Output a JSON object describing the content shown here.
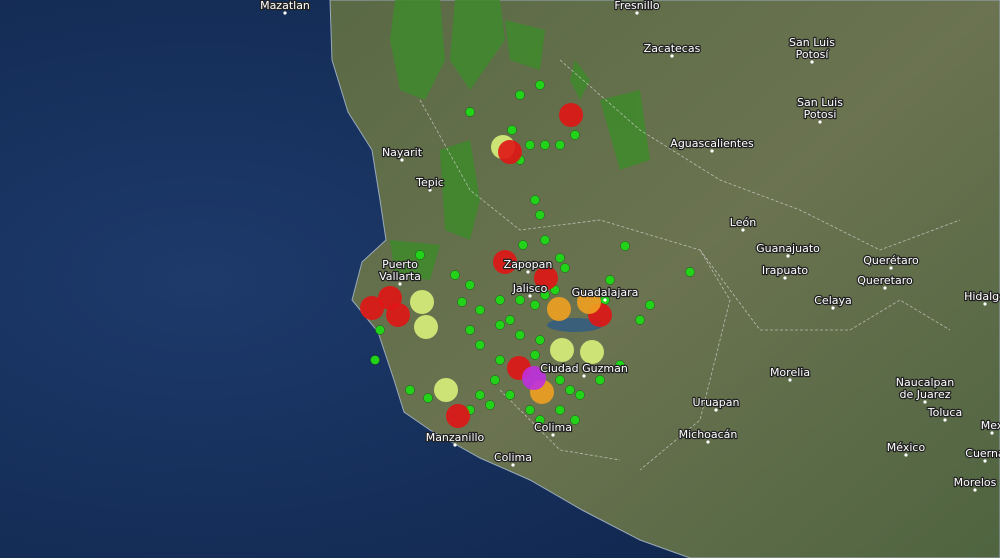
{
  "places": [
    {
      "lines": [
        "Mazatlan"
      ]
    },
    {
      "lines": [
        "Fresnillo"
      ]
    },
    {
      "lines": [
        "Zacatecas"
      ]
    },
    {
      "lines": [
        "San Luis",
        "Potosí"
      ]
    },
    {
      "lines": [
        "San Luis",
        "Potosi"
      ]
    },
    {
      "lines": [
        "Nayarit"
      ]
    },
    {
      "lines": [
        "Tepic"
      ]
    },
    {
      "lines": [
        "Aguascalientes"
      ]
    },
    {
      "lines": [
        "León"
      ]
    },
    {
      "lines": [
        "Guanajuato"
      ]
    },
    {
      "lines": [
        "Querétaro"
      ]
    },
    {
      "lines": [
        "Queretaro"
      ]
    },
    {
      "lines": [
        "Irapuato"
      ]
    },
    {
      "lines": [
        "Celaya"
      ]
    },
    {
      "lines": [
        "Hidalgo"
      ]
    },
    {
      "lines": [
        "Puerto",
        "Vallarta"
      ]
    },
    {
      "lines": [
        "Zapopan"
      ]
    },
    {
      "lines": [
        "Jalisco"
      ]
    },
    {
      "lines": [
        "Guadalajara"
      ]
    },
    {
      "lines": [
        "Ciudad Guzman"
      ]
    },
    {
      "lines": [
        "Morelia"
      ]
    },
    {
      "lines": [
        "Naucalpan",
        "de Juarez"
      ]
    },
    {
      "lines": [
        "Uruapan"
      ]
    },
    {
      "lines": [
        "Toluca"
      ]
    },
    {
      "lines": [
        "Michoacán"
      ]
    },
    {
      "lines": [
        "Manzanillo"
      ]
    },
    {
      "lines": [
        "Colima"
      ]
    },
    {
      "lines": [
        "Colima"
      ]
    },
    {
      "lines": [
        "México"
      ]
    },
    {
      "lines": [
        "Cuerna"
      ]
    },
    {
      "lines": [
        "Morelos"
      ]
    },
    {
      "lines": [
        "Mex"
      ]
    }
  ]
}
